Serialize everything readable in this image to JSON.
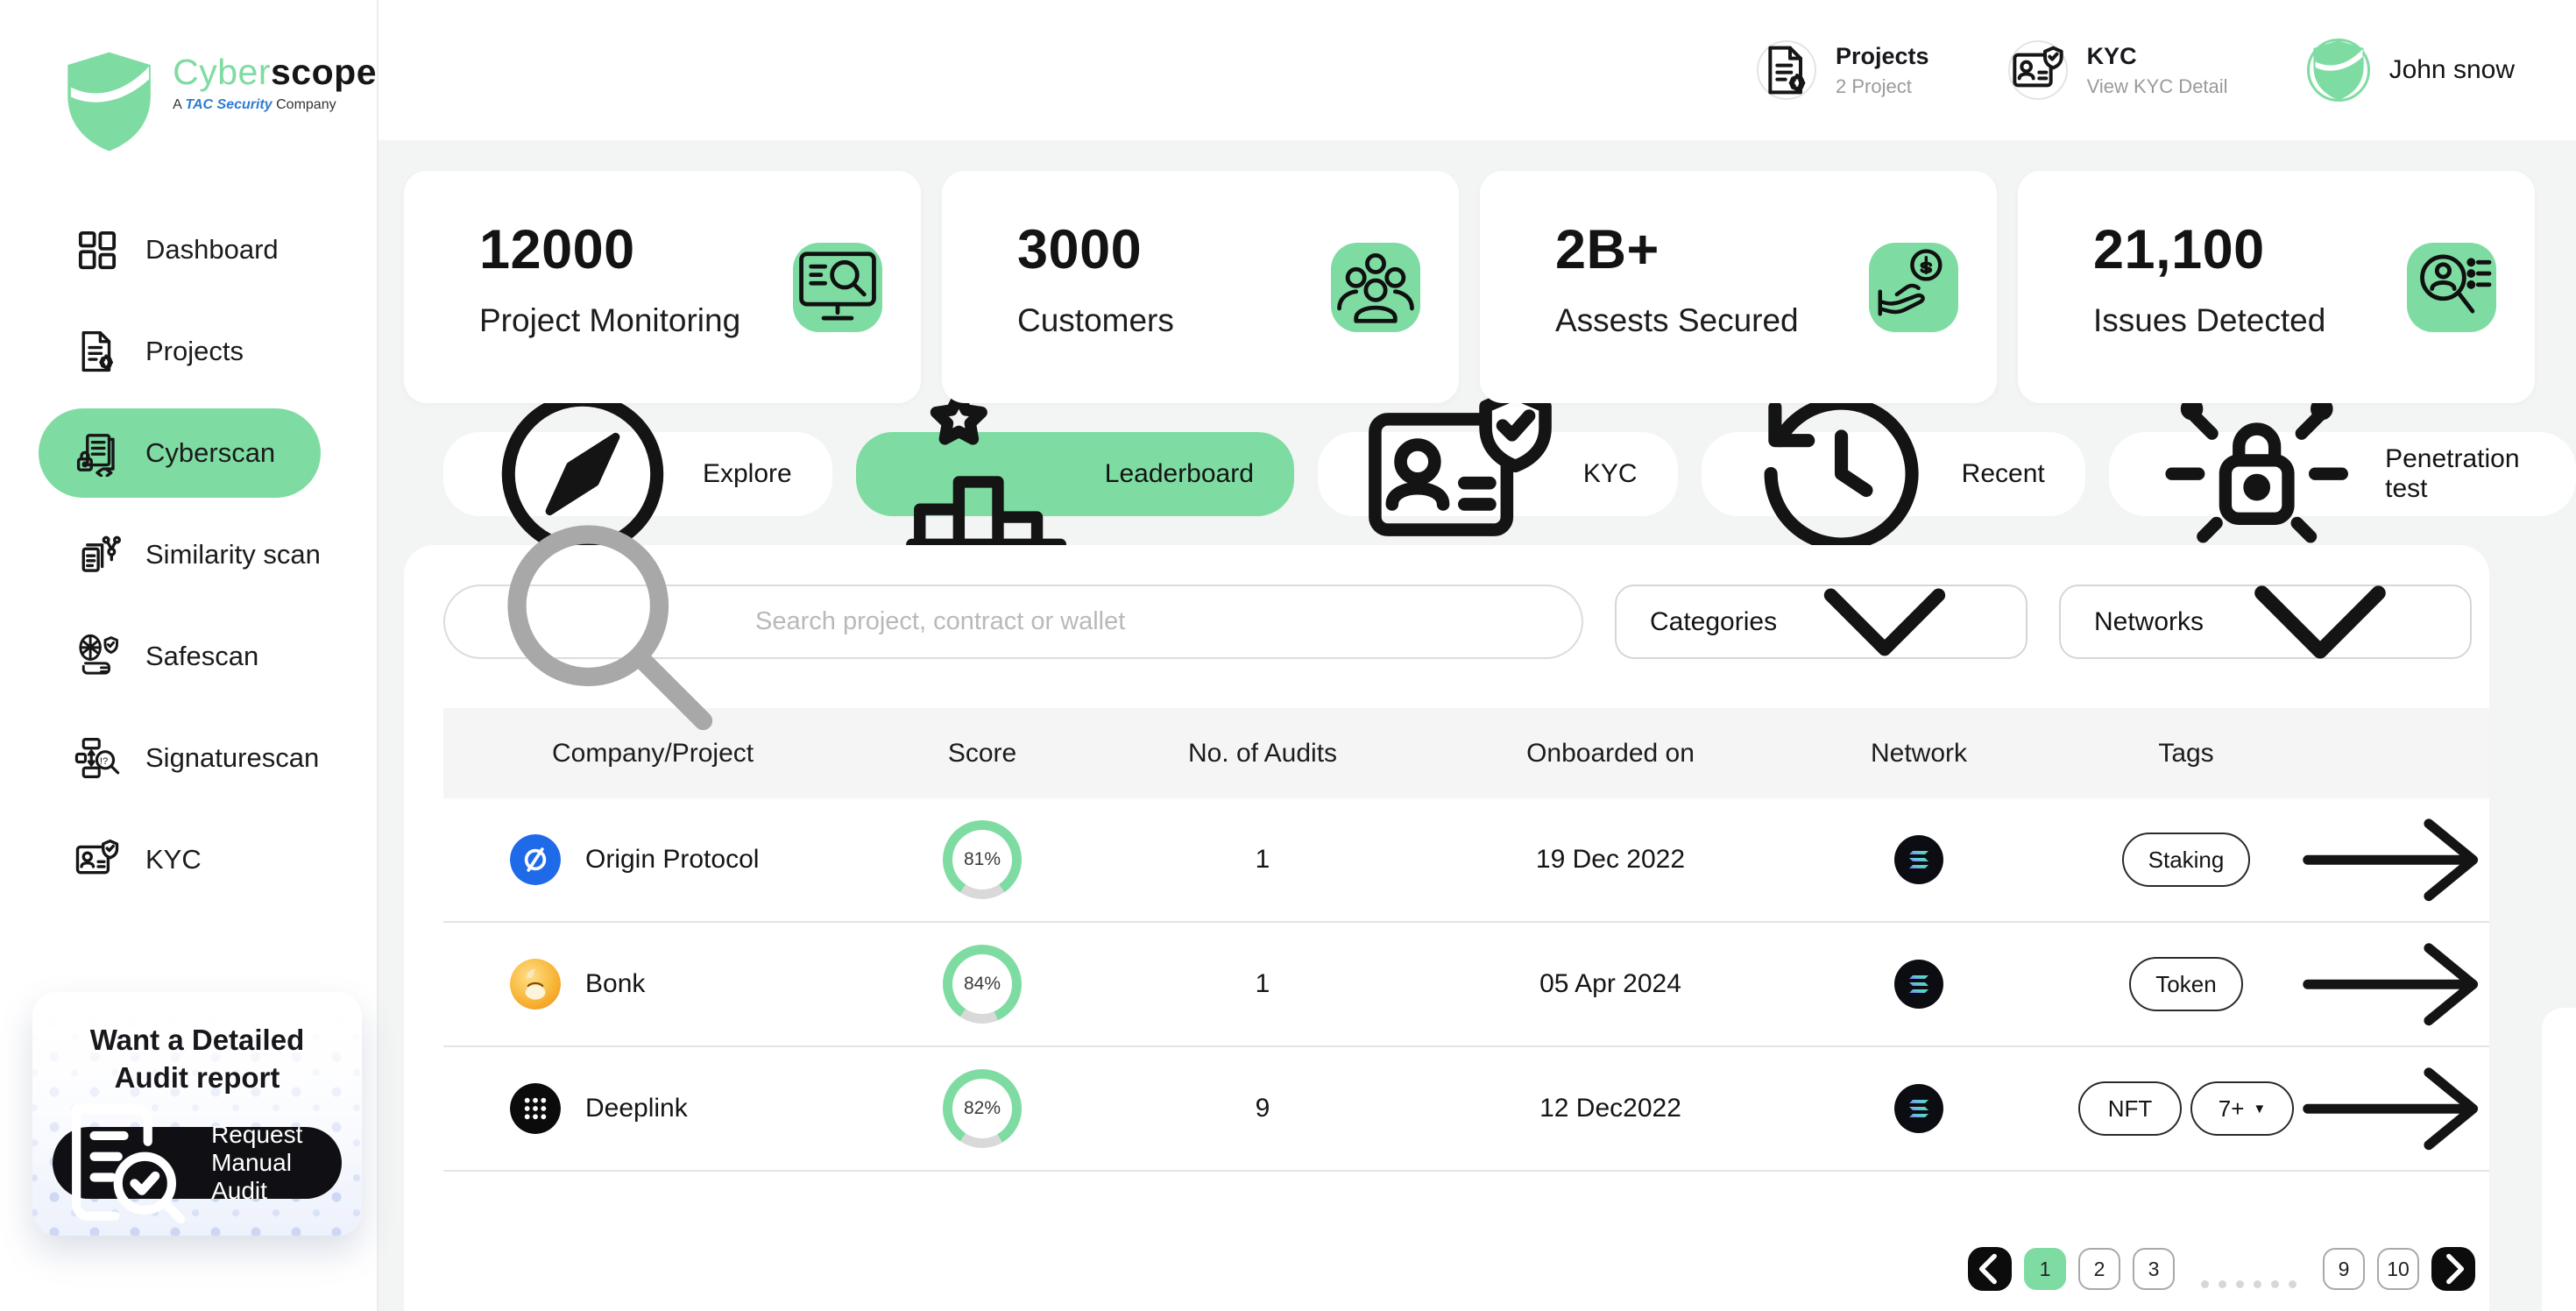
{
  "brand": {
    "logo_green": "Cyber",
    "logo_dark": "scope",
    "tagline": {
      "prefix": "A",
      "highlight": "TAC Security",
      "suffix": "Company"
    }
  },
  "sidebar": {
    "items": [
      {
        "label": "Dashboard",
        "icon": "dashboard-icon",
        "active": false
      },
      {
        "label": "Projects",
        "icon": "projects-icon",
        "active": false
      },
      {
        "label": "Cyberscan",
        "icon": "cyberscan-icon",
        "active": true
      },
      {
        "label": "Similarity scan",
        "icon": "similarity-scan-icon",
        "active": false
      },
      {
        "label": "Safescan",
        "icon": "safescan-icon",
        "active": false
      },
      {
        "label": "Signaturescan",
        "icon": "signaturescan-icon",
        "active": false
      },
      {
        "label": "KYC",
        "icon": "kyc-icon",
        "active": false
      }
    ],
    "promo": {
      "title": "Want a Detailed Audit report",
      "button_label": "Request Manual Audit",
      "button_icon": "doc-check-icon"
    }
  },
  "header": {
    "projects_widget": {
      "title": "Projects",
      "subtitle": "2 Project",
      "icon": "projects-icon"
    },
    "kyc_widget": {
      "title": "KYC",
      "subtitle": "View KYC Detail",
      "icon": "kyc-icon"
    },
    "user": {
      "name": "John snow",
      "avatar_icon": "shield-logo"
    }
  },
  "stats": [
    {
      "value": "12000",
      "label": "Project Monitoring",
      "icon": "monitor-scan-icon"
    },
    {
      "value": "3000",
      "label": "Customers",
      "icon": "customers-icon"
    },
    {
      "value": "2B+",
      "label": "Assests Secured",
      "icon": "assets-secured-icon"
    },
    {
      "value": "21,100",
      "label": "Issues Detected",
      "icon": "issues-detected-icon"
    }
  ],
  "tabs": [
    {
      "label": "Explore",
      "icon": "compass-icon",
      "active": false
    },
    {
      "label": "Leaderboard",
      "icon": "leaderboard-icon",
      "active": true
    },
    {
      "label": "KYC",
      "icon": "kyc-icon",
      "active": false
    },
    {
      "label": "Recent",
      "icon": "recent-icon",
      "active": false
    },
    {
      "label": "Penetration test",
      "icon": "penetration-test-icon",
      "active": false
    }
  ],
  "filters": {
    "search_placeholder": "Search project, contract or wallet",
    "categories_label": "Categories",
    "networks_label": "Networks"
  },
  "table": {
    "columns": [
      "Company/Project",
      "Score",
      "No. of Audits",
      "Onboarded on",
      "Network",
      "Tags"
    ],
    "rows": [
      {
        "company": "Origin Protocol",
        "logo": "origin-protocol-logo",
        "score": "81%",
        "score_pct": 81,
        "audits": "1",
        "onboarded": "19 Dec 2022",
        "network": "solana",
        "tags": [
          "Staking"
        ]
      },
      {
        "company": "Bonk",
        "logo": "bonk-logo",
        "score": "84%",
        "score_pct": 84,
        "audits": "1",
        "onboarded": "05 Apr 2024",
        "network": "solana",
        "tags": [
          "Token"
        ]
      },
      {
        "company": "Deeplink",
        "logo": "deeplink-logo",
        "score": "82%",
        "score_pct": 82,
        "audits": "9",
        "onboarded": "12 Dec2022",
        "network": "solana",
        "tags": [
          "NFT"
        ],
        "more_tag": {
          "label": "7+",
          "caret": "▼"
        }
      }
    ]
  },
  "pagination": {
    "pages_left": [
      "1",
      "2",
      "3"
    ],
    "pages_right": [
      "9",
      "10"
    ],
    "active_page": "1",
    "ellipsis_dot_count": 6
  },
  "colors": {
    "accent_green": "#7EDCA2",
    "page_bg": "#F3F4F4",
    "table_header_bg": "#F5F5F6",
    "dark": "#111111",
    "ring_rest": "#D9D9D9",
    "solana_bg": "#0C0D12",
    "origin_blue": "#1F6AE8"
  }
}
